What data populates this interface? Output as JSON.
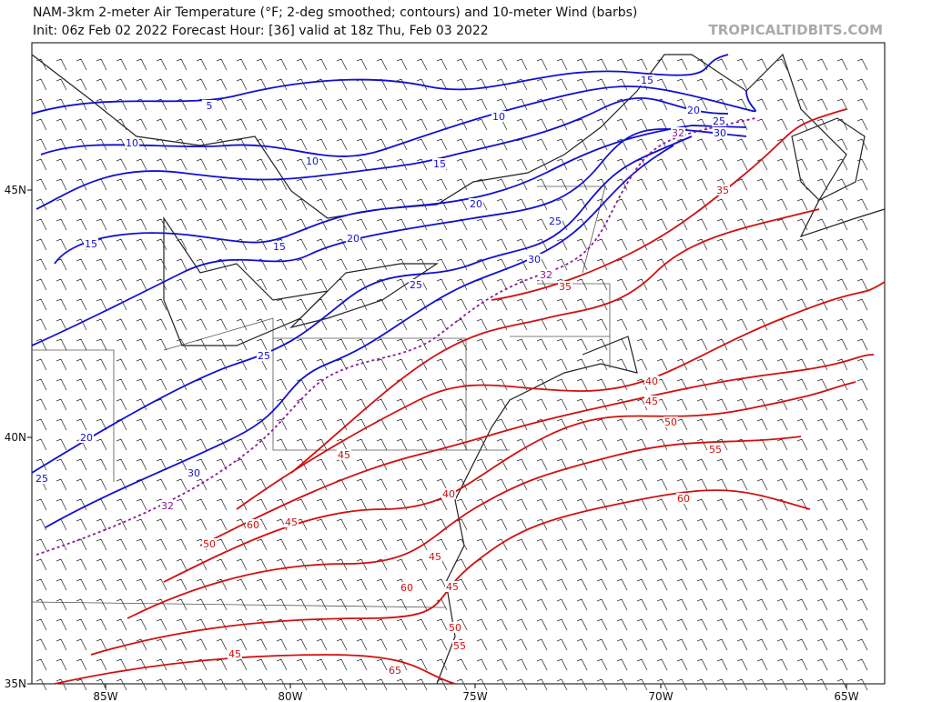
{
  "header": {
    "title": "NAM-3km 2-meter Air Temperature (°F; 2-deg smoothed; contours) and 10-meter Wind (barbs)",
    "subtitle": "Init: 06z Feb 02 2022   Forecast Hour: [36]   valid at 18z Thu, Feb 03 2022",
    "watermark": "TROPICALTIDBITS.COM"
  },
  "axes": {
    "lat_labels": [
      "45N",
      "40N",
      "35N"
    ],
    "lon_labels": [
      "85W",
      "80W",
      "75W",
      "70W",
      "65W"
    ]
  },
  "contour_labels": {
    "blue": [
      "5",
      "10",
      "10",
      "10",
      "15",
      "15",
      "20",
      "25",
      "30",
      "15",
      "15",
      "20",
      "20",
      "25",
      "30",
      "25",
      "25",
      "20",
      "25",
      "30"
    ],
    "purple": [
      "32",
      "32",
      "32"
    ],
    "red": [
      "35",
      "35",
      "40",
      "45",
      "50",
      "55",
      "60",
      "45",
      "40",
      "60",
      "45",
      "50",
      "45",
      "60",
      "45",
      "50",
      "55",
      "45",
      "65"
    ]
  }
}
